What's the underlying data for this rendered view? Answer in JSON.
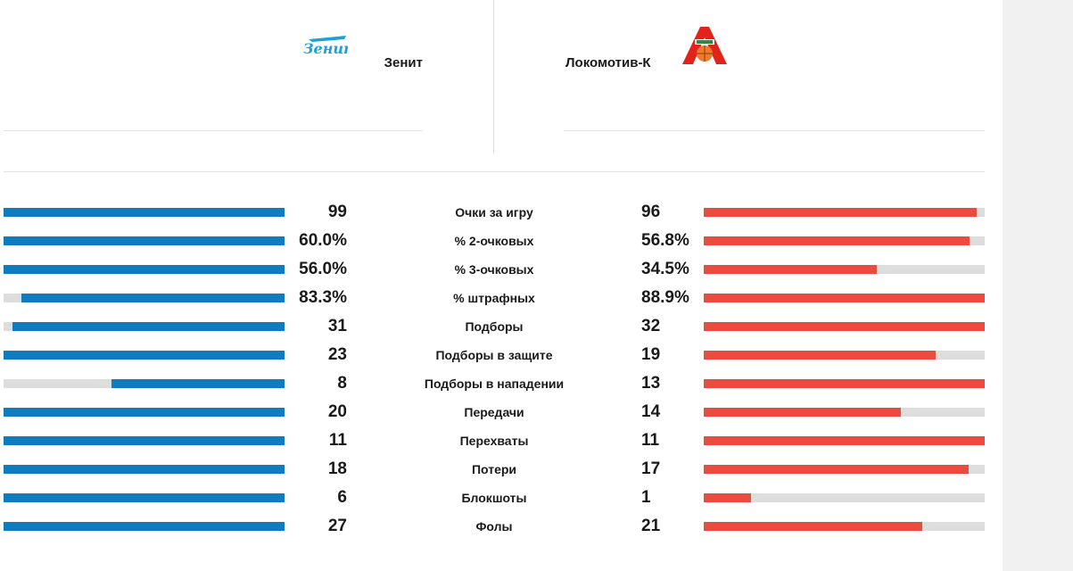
{
  "teams": {
    "home": {
      "name": "Зенит",
      "logo_icon": "zenit-logo-icon",
      "color": "#0f7cc1"
    },
    "away": {
      "name": "Локомотив-К",
      "logo_icon": "lokomotiv-logo-icon",
      "color": "#eb4a3e"
    }
  },
  "stats": [
    {
      "label": "Очки за игру",
      "home": "99",
      "away": "96",
      "home_fill": 1.0,
      "away_fill": 0.97
    },
    {
      "label": "% 2-очковых",
      "home": "60.0%",
      "away": "56.8%",
      "home_fill": 1.0,
      "away_fill": 0.946
    },
    {
      "label": "% 3-очковых",
      "home": "56.0%",
      "away": "34.5%",
      "home_fill": 1.0,
      "away_fill": 0.616
    },
    {
      "label": "% штрафных",
      "home": "83.3%",
      "away": "88.9%",
      "home_fill": 0.937,
      "away_fill": 1.0
    },
    {
      "label": "Подборы",
      "home": "31",
      "away": "32",
      "home_fill": 0.969,
      "away_fill": 1.0
    },
    {
      "label": "Подборы в защите",
      "home": "23",
      "away": "19",
      "home_fill": 1.0,
      "away_fill": 0.826
    },
    {
      "label": "Подборы в нападении",
      "home": "8",
      "away": "13",
      "home_fill": 0.615,
      "away_fill": 1.0
    },
    {
      "label": "Передачи",
      "home": "20",
      "away": "14",
      "home_fill": 1.0,
      "away_fill": 0.7
    },
    {
      "label": "Перехваты",
      "home": "11",
      "away": "11",
      "home_fill": 1.0,
      "away_fill": 1.0
    },
    {
      "label": "Потери",
      "home": "18",
      "away": "17",
      "home_fill": 1.0,
      "away_fill": 0.944
    },
    {
      "label": "Блокшоты",
      "home": "6",
      "away": "1",
      "home_fill": 1.0,
      "away_fill": 0.167
    },
    {
      "label": "Фолы",
      "home": "27",
      "away": "21",
      "home_fill": 1.0,
      "away_fill": 0.778
    }
  ]
}
